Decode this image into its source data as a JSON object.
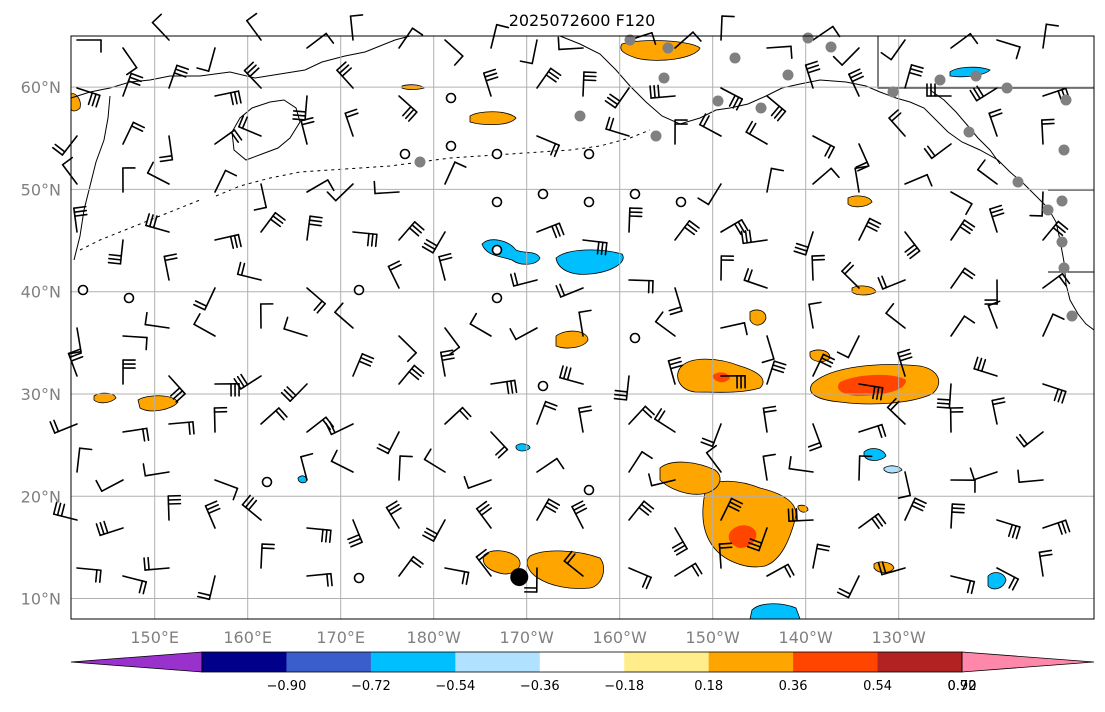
{
  "title": "2025072600 F120",
  "map": {
    "lon_range": [
      141,
      251
    ],
    "lat_range": [
      8,
      65
    ],
    "x_ticks": [
      {
        "lon": 150,
        "label": "150°E"
      },
      {
        "lon": 160,
        "label": "160°E"
      },
      {
        "lon": 170,
        "label": "170°E"
      },
      {
        "lon": 180,
        "label": "180°W"
      },
      {
        "lon": 190,
        "label": "170°W"
      },
      {
        "lon": 200,
        "label": "160°W"
      },
      {
        "lon": 210,
        "label": "150°W"
      },
      {
        "lon": 220,
        "label": "140°W"
      },
      {
        "lon": 230,
        "label": "130°W"
      }
    ],
    "y_ticks": [
      {
        "lat": 10,
        "label": "10°N"
      },
      {
        "lat": 20,
        "label": "20°N"
      },
      {
        "lat": 30,
        "label": "30°N"
      },
      {
        "lat": 40,
        "label": "40°N"
      },
      {
        "lat": 50,
        "label": "50°N"
      },
      {
        "lat": 60,
        "label": "60°N"
      }
    ],
    "grid": true,
    "marker_storm_center": {
      "lon": 189.2,
      "lat": 12.1
    }
  },
  "colorbar": {
    "levels": [
      -0.9,
      -0.72,
      -0.54,
      -0.36,
      -0.18,
      0.18,
      0.36,
      0.54,
      0.72,
      0.9
    ],
    "labels": [
      "−0.90",
      "−0.72",
      "−0.54",
      "−0.36",
      "−0.18",
      "0.18",
      "0.36",
      "0.54",
      "0.72",
      "0.90"
    ],
    "colors": [
      "#9932cc",
      "#00008b",
      "#3a5fcd",
      "#00bfff",
      "#b0e2ff",
      "#ffffff",
      "#ffec8b",
      "#ffa500",
      "#ff4500",
      "#b22222",
      "#ff88aa"
    ]
  },
  "colors": {
    "coast": "#000000",
    "grid": "#b0b0b0",
    "station": "#808080"
  }
}
